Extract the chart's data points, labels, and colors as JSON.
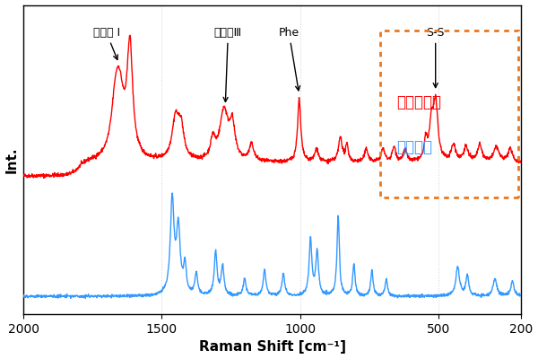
{
  "title": "",
  "xlabel": "Raman Shift [cm⁻¹]",
  "ylabel": "Int.",
  "xlim": [
    2000,
    200
  ],
  "background_color": "#ffffff",
  "grid_color": "#c8c8c8",
  "protein_color": "#ff0000",
  "nylon_color": "#3399ff",
  "rect_color": "#e87820",
  "protein_label": "タンパク質",
  "nylon_label": "ナイロン",
  "amide1_label": "アミド I",
  "amide3_label": "アミドⅢ",
  "phe_label": "Phe",
  "ss_label": "S-S"
}
